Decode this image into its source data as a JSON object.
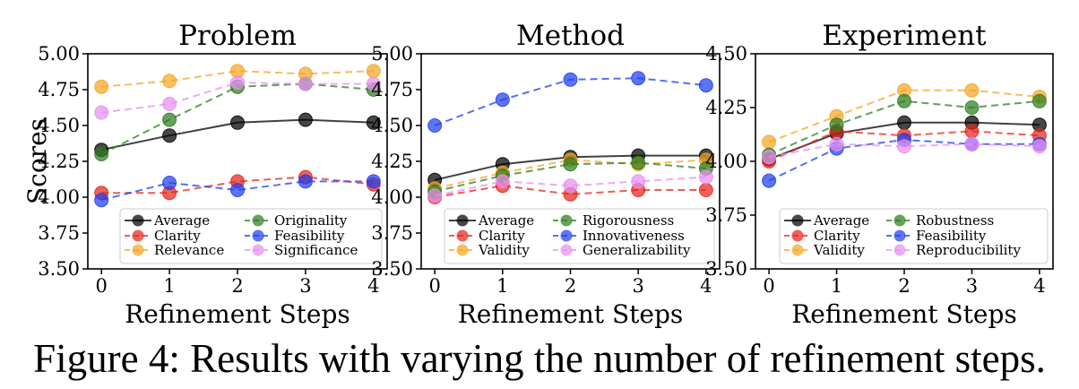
{
  "caption": "Figure 4: Results with varying the number of refinement steps.",
  "colors": {
    "black": "#000000",
    "red": "#e8251c",
    "orange": "#f5a623",
    "green": "#2e7d1f",
    "blue": "#1f3ff0",
    "violet": "#e78ff0"
  },
  "chart_data": [
    {
      "type": "line",
      "title": "Problem",
      "xlabel": "Refinement Steps",
      "ylabel": "Scores",
      "x": [
        0,
        1,
        2,
        3,
        4
      ],
      "xticks": [
        "0",
        "1",
        "2",
        "3",
        "4"
      ],
      "ylim": [
        3.5,
        5.0
      ],
      "yticks": [
        "3.50",
        "3.75",
        "4.00",
        "4.25",
        "4.50",
        "4.75",
        "5.00"
      ],
      "legend_position": "bottom-right",
      "series": [
        {
          "name": "Average",
          "color": "black",
          "dashed": false,
          "values": [
            4.33,
            4.43,
            4.52,
            4.54,
            4.52
          ]
        },
        {
          "name": "Clarity",
          "color": "red",
          "dashed": true,
          "values": [
            4.03,
            4.03,
            4.11,
            4.14,
            4.09
          ]
        },
        {
          "name": "Relevance",
          "color": "orange",
          "dashed": true,
          "values": [
            4.77,
            4.81,
            4.88,
            4.86,
            4.88
          ]
        },
        {
          "name": "Originality",
          "color": "green",
          "dashed": true,
          "values": [
            4.3,
            4.54,
            4.77,
            4.79,
            4.75
          ]
        },
        {
          "name": "Feasibility",
          "color": "blue",
          "dashed": true,
          "values": [
            3.98,
            4.1,
            4.05,
            4.11,
            4.11
          ]
        },
        {
          "name": "Significance",
          "color": "violet",
          "dashed": true,
          "values": [
            4.59,
            4.65,
            4.8,
            4.79,
            4.79
          ]
        }
      ]
    },
    {
      "type": "line",
      "title": "Method",
      "xlabel": "Refinement Steps",
      "ylabel": "",
      "x": [
        0,
        1,
        2,
        3,
        4
      ],
      "xticks": [
        "0",
        "1",
        "2",
        "3",
        "4"
      ],
      "ylim": [
        3.5,
        5.0
      ],
      "yticks": [
        "3.50",
        "3.75",
        "4.00",
        "4.25",
        "4.50",
        "4.75",
        "5.00"
      ],
      "legend_position": "bottom-right",
      "series": [
        {
          "name": "Average",
          "color": "black",
          "dashed": false,
          "values": [
            4.12,
            4.23,
            4.28,
            4.29,
            4.29
          ]
        },
        {
          "name": "Clarity",
          "color": "red",
          "dashed": true,
          "values": [
            4.0,
            4.08,
            4.02,
            4.05,
            4.05
          ]
        },
        {
          "name": "Validity",
          "color": "orange",
          "dashed": true,
          "values": [
            4.06,
            4.17,
            4.26,
            4.23,
            4.26
          ]
        },
        {
          "name": "Rigorousness",
          "color": "green",
          "dashed": true,
          "values": [
            4.04,
            4.15,
            4.23,
            4.24,
            4.2
          ]
        },
        {
          "name": "Innovativeness",
          "color": "blue",
          "dashed": true,
          "values": [
            4.5,
            4.68,
            4.82,
            4.83,
            4.78
          ]
        },
        {
          "name": "Generalizability",
          "color": "violet",
          "dashed": true,
          "values": [
            4.01,
            4.11,
            4.08,
            4.11,
            4.14
          ]
        }
      ]
    },
    {
      "type": "line",
      "title": "Experiment",
      "xlabel": "Refinement Steps",
      "ylabel": "",
      "x": [
        0,
        1,
        2,
        3,
        4
      ],
      "xticks": [
        "0",
        "1",
        "2",
        "3",
        "4"
      ],
      "ylim": [
        3.5,
        4.5
      ],
      "yticks": [
        "3.50",
        "3.75",
        "4.00",
        "4.25",
        "4.50"
      ],
      "legend_position": "bottom-right",
      "series": [
        {
          "name": "Average",
          "color": "black",
          "dashed": false,
          "values": [
            4.01,
            4.13,
            4.18,
            4.18,
            4.17
          ]
        },
        {
          "name": "Clarity",
          "color": "red",
          "dashed": true,
          "values": [
            4.0,
            4.14,
            4.12,
            4.14,
            4.12
          ]
        },
        {
          "name": "Validity",
          "color": "orange",
          "dashed": true,
          "values": [
            4.09,
            4.21,
            4.33,
            4.33,
            4.3
          ]
        },
        {
          "name": "Robustness",
          "color": "green",
          "dashed": true,
          "values": [
            4.03,
            4.17,
            4.28,
            4.25,
            4.28
          ]
        },
        {
          "name": "Feasibility",
          "color": "blue",
          "dashed": true,
          "values": [
            3.91,
            4.06,
            4.1,
            4.08,
            4.08
          ]
        },
        {
          "name": "Reproducibility",
          "color": "violet",
          "dashed": true,
          "values": [
            4.02,
            4.08,
            4.07,
            4.08,
            4.07
          ]
        }
      ]
    }
  ]
}
